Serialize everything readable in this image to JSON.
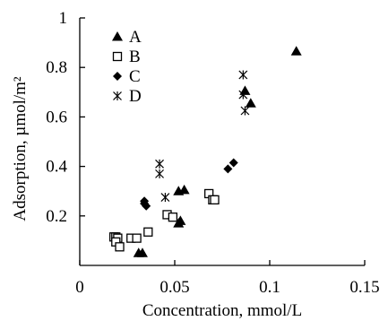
{
  "chart_data": {
    "type": "scatter",
    "xlabel": "Concentration, mmol/L",
    "ylabel": "Adsorption, µmol/m²",
    "xlim": [
      0,
      0.15
    ],
    "ylim": [
      0,
      1
    ],
    "x_ticks": [
      0,
      0.05,
      0.1,
      0.15
    ],
    "x_tick_labels": [
      "0",
      "0.05",
      "0.1",
      "0.15"
    ],
    "y_ticks": [
      0.2,
      0.4,
      0.6,
      0.8,
      1
    ],
    "y_tick_labels": [
      "0.2",
      "0.4",
      "0.6",
      "0.8",
      "1"
    ],
    "grid": false,
    "legend_position": "top-left",
    "series": [
      {
        "name": "A",
        "marker": "filled-triangle",
        "color": "#000000",
        "points": [
          [
            0.031,
            0.05
          ],
          [
            0.033,
            0.05
          ],
          [
            0.052,
            0.17
          ],
          [
            0.052,
            0.3
          ],
          [
            0.053,
            0.18
          ],
          [
            0.055,
            0.305
          ],
          [
            0.087,
            0.705
          ],
          [
            0.09,
            0.655
          ],
          [
            0.114,
            0.865
          ]
        ]
      },
      {
        "name": "B",
        "marker": "open-square",
        "color": "#000000",
        "points": [
          [
            0.018,
            0.115
          ],
          [
            0.019,
            0.115
          ],
          [
            0.02,
            0.11
          ],
          [
            0.019,
            0.095
          ],
          [
            0.021,
            0.075
          ],
          [
            0.027,
            0.11
          ],
          [
            0.03,
            0.11
          ],
          [
            0.036,
            0.135
          ],
          [
            0.046,
            0.205
          ],
          [
            0.049,
            0.195
          ],
          [
            0.068,
            0.29
          ],
          [
            0.07,
            0.265
          ],
          [
            0.071,
            0.265
          ]
        ]
      },
      {
        "name": "C",
        "marker": "filled-diamond",
        "color": "#000000",
        "points": [
          [
            0.034,
            0.26
          ],
          [
            0.034,
            0.25
          ],
          [
            0.035,
            0.24
          ],
          [
            0.078,
            0.39
          ],
          [
            0.081,
            0.415
          ]
        ]
      },
      {
        "name": "D",
        "marker": "star",
        "color": "#000000",
        "points": [
          [
            0.042,
            0.41
          ],
          [
            0.042,
            0.37
          ],
          [
            0.045,
            0.275
          ],
          [
            0.086,
            0.77
          ],
          [
            0.086,
            0.69
          ],
          [
            0.087,
            0.625
          ]
        ]
      }
    ]
  }
}
